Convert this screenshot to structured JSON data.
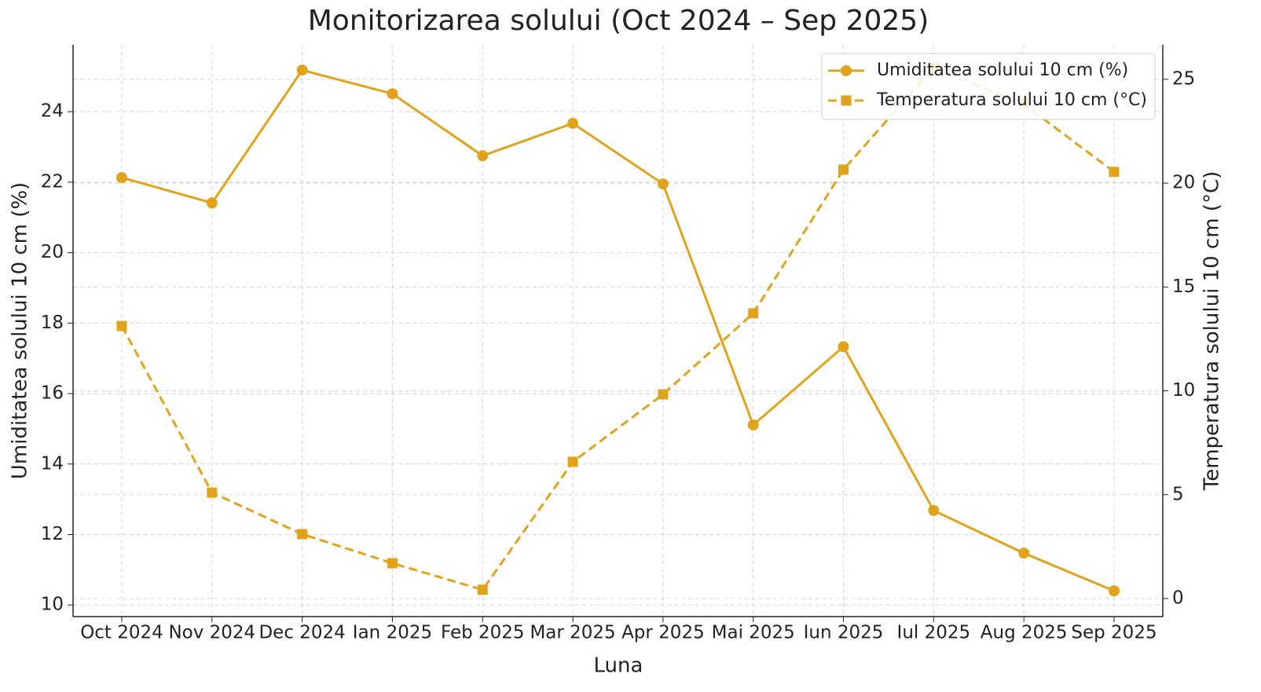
{
  "chart_data": {
    "type": "line",
    "title": "Monitorizarea solului (Oct 2024 – Sep 2025)",
    "xlabel": "Luna",
    "ylabel": "Umiditatea solului 10 cm (%)",
    "y2label": "Temperatura solului 10 cm (°C)",
    "categories": [
      "Oct 2024",
      "Nov 2024",
      "Dec 2024",
      "Ian 2025",
      "Feb 2025",
      "Mar 2025",
      "Apr 2025",
      "Mai 2025",
      "Iun 2025",
      "Iul 2025",
      "Aug 2025",
      "Sep 2025"
    ],
    "series": [
      {
        "name": "Umiditatea solului 10 cm (%)",
        "color": "#e1a21c",
        "marker": "circle",
        "linestyle": "solid",
        "values": [
          22.13,
          21.41,
          25.18,
          24.51,
          22.75,
          23.67,
          21.95,
          15.11,
          17.33,
          12.68,
          11.47,
          10.4
        ]
      },
      {
        "name": "Temperatura solului 10 cm (°C)",
        "color": "#e1a21c",
        "marker": "square",
        "linestyle": "dashed",
        "axis": "y2",
        "values": [
          13.12,
          5.1,
          3.1,
          1.7,
          0.42,
          6.58,
          9.83,
          13.73,
          20.65,
          25.57,
          23.8,
          20.54
        ]
      }
    ],
    "ylim": [
      9.67,
      25.9
    ],
    "yticks": [
      10,
      12,
      14,
      16,
      18,
      20,
      22,
      24
    ],
    "y2lim": [
      -0.87,
      26.66
    ],
    "y2ticks": [
      0,
      5,
      10,
      15,
      20,
      25
    ],
    "grid": true,
    "legend": "upper right"
  }
}
